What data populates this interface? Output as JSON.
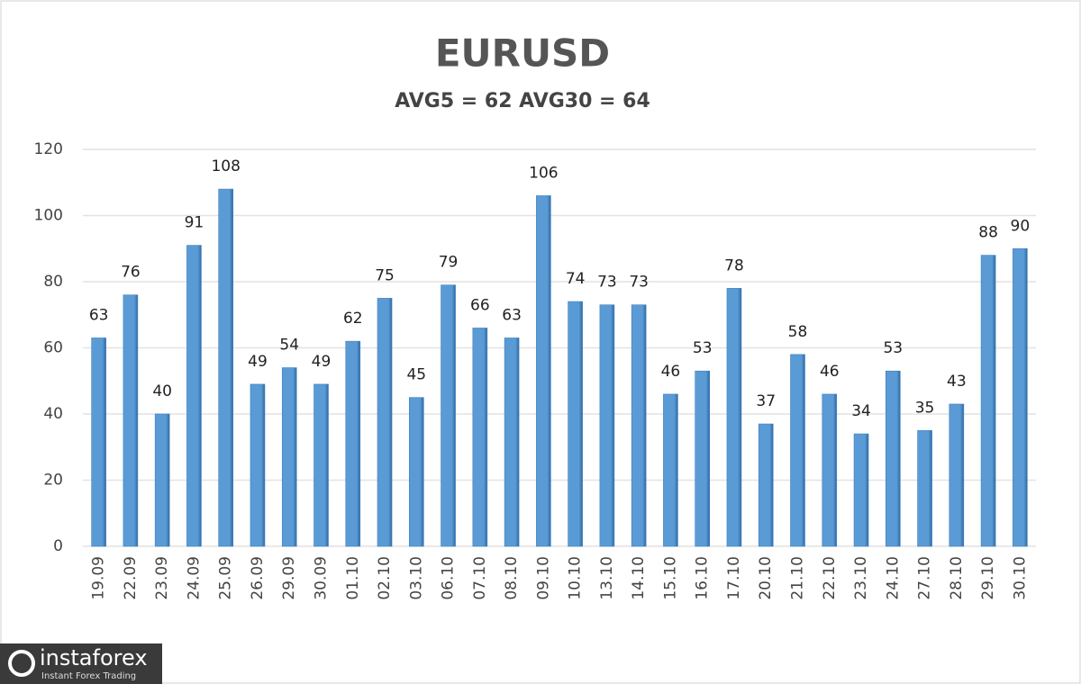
{
  "chart_data": {
    "type": "bar",
    "title": "EURUSD",
    "subtitle": "AVG5 = 62 AVG30 = 64",
    "categories": [
      "19.09",
      "22.09",
      "23.09",
      "24.09",
      "25.09",
      "26.09",
      "29.09",
      "30.09",
      "01.10",
      "02.10",
      "03.10",
      "06.10",
      "07.10",
      "08.10",
      "09.10",
      "10.10",
      "13.10",
      "14.10",
      "15.10",
      "16.10",
      "17.10",
      "20.10",
      "21.10",
      "22.10",
      "23.10",
      "24.10",
      "27.10",
      "28.10",
      "29.10",
      "30.10"
    ],
    "values": [
      63,
      76,
      40,
      91,
      108,
      49,
      54,
      49,
      62,
      75,
      45,
      79,
      66,
      63,
      106,
      74,
      73,
      73,
      46,
      53,
      78,
      37,
      58,
      46,
      34,
      53,
      35,
      43,
      88,
      90
    ],
    "color": "#5b9bd5",
    "ylim": [
      0,
      120
    ],
    "yticks": [
      0,
      20,
      40,
      60,
      80,
      100,
      120
    ],
    "grid": true
  },
  "watermark": {
    "brand": "instaforex",
    "tagline": "Instant Forex Trading"
  }
}
